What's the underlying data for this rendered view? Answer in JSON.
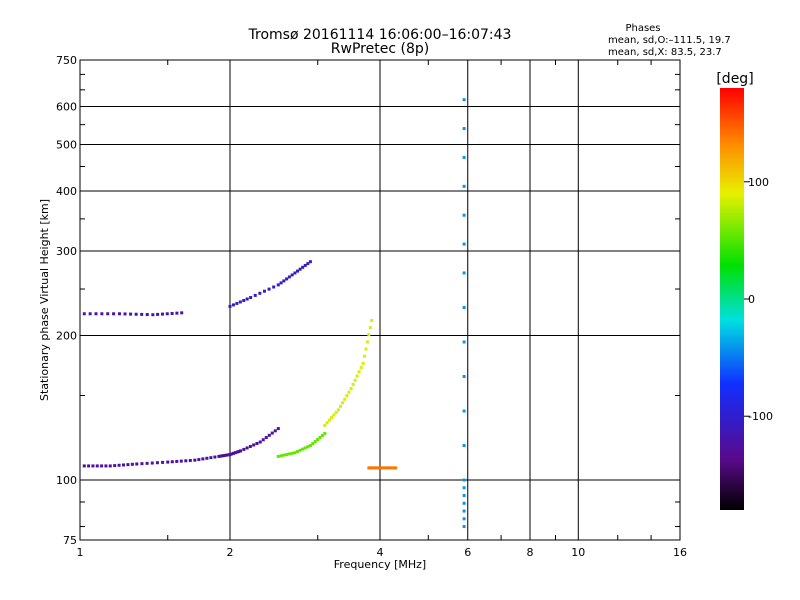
{
  "chart_data": {
    "type": "scatter",
    "title": "Tromsø 20161114 16:06:00–16:07:43",
    "subtitle": "RwPretec (8p)",
    "xlabel": "Frequency [MHz]",
    "ylabel": "Stationary phase Virtual Height [km]",
    "x_scale": "log",
    "y_scale": "log",
    "xlim": [
      1,
      16
    ],
    "ylim": [
      75,
      750
    ],
    "x_ticks": [
      1,
      2,
      4,
      6,
      8,
      10,
      16
    ],
    "y_ticks": [
      75,
      100,
      200,
      300,
      400,
      500,
      600,
      750
    ],
    "grid": true,
    "colorbar": {
      "label": "[deg]",
      "range": [
        -180,
        180
      ],
      "ticks": [
        -100,
        0,
        100
      ],
      "colormap": "rainbow (black-purple-blue-cyan-green-yellow-red)"
    },
    "legend": {
      "header": "Phases",
      "line1": "mean, sd,O:–111.5, 19.7",
      "line2": "mean, sd,X: 83.5, 23.7"
    },
    "traces": [
      {
        "x": [
          1.02,
          1.15,
          1.3,
          1.5,
          1.7,
          1.9,
          2.0,
          2.1,
          2.3,
          2.5
        ],
        "y": [
          107,
          107,
          108,
          109,
          110,
          112,
          113,
          115,
          120,
          128
        ],
        "phase": -125
      },
      {
        "x": [
          1.02,
          1.2,
          1.4,
          1.6
        ],
        "y": [
          222,
          222,
          221,
          223
        ],
        "phase": -120
      },
      {
        "x": [
          2.0,
          2.2,
          2.5,
          2.7,
          2.9
        ],
        "y": [
          230,
          240,
          255,
          270,
          285
        ],
        "phase": -105
      },
      {
        "x": [
          2.5,
          2.7,
          2.9,
          3.1
        ],
        "y": [
          112,
          114,
          118,
          125
        ],
        "phase": 55
      },
      {
        "x": [
          3.1,
          3.3,
          3.5,
          3.7,
          3.85
        ],
        "y": [
          130,
          140,
          155,
          175,
          215
        ],
        "phase": 85
      },
      {
        "x": [
          3.8,
          4.0,
          4.3
        ],
        "y": [
          106,
          106,
          106
        ],
        "phase": 140
      },
      {
        "x": [
          5.9,
          5.9,
          5.9,
          5.9
        ],
        "y": [
          80,
          100,
          270,
          620
        ],
        "phase": -40
      }
    ]
  }
}
